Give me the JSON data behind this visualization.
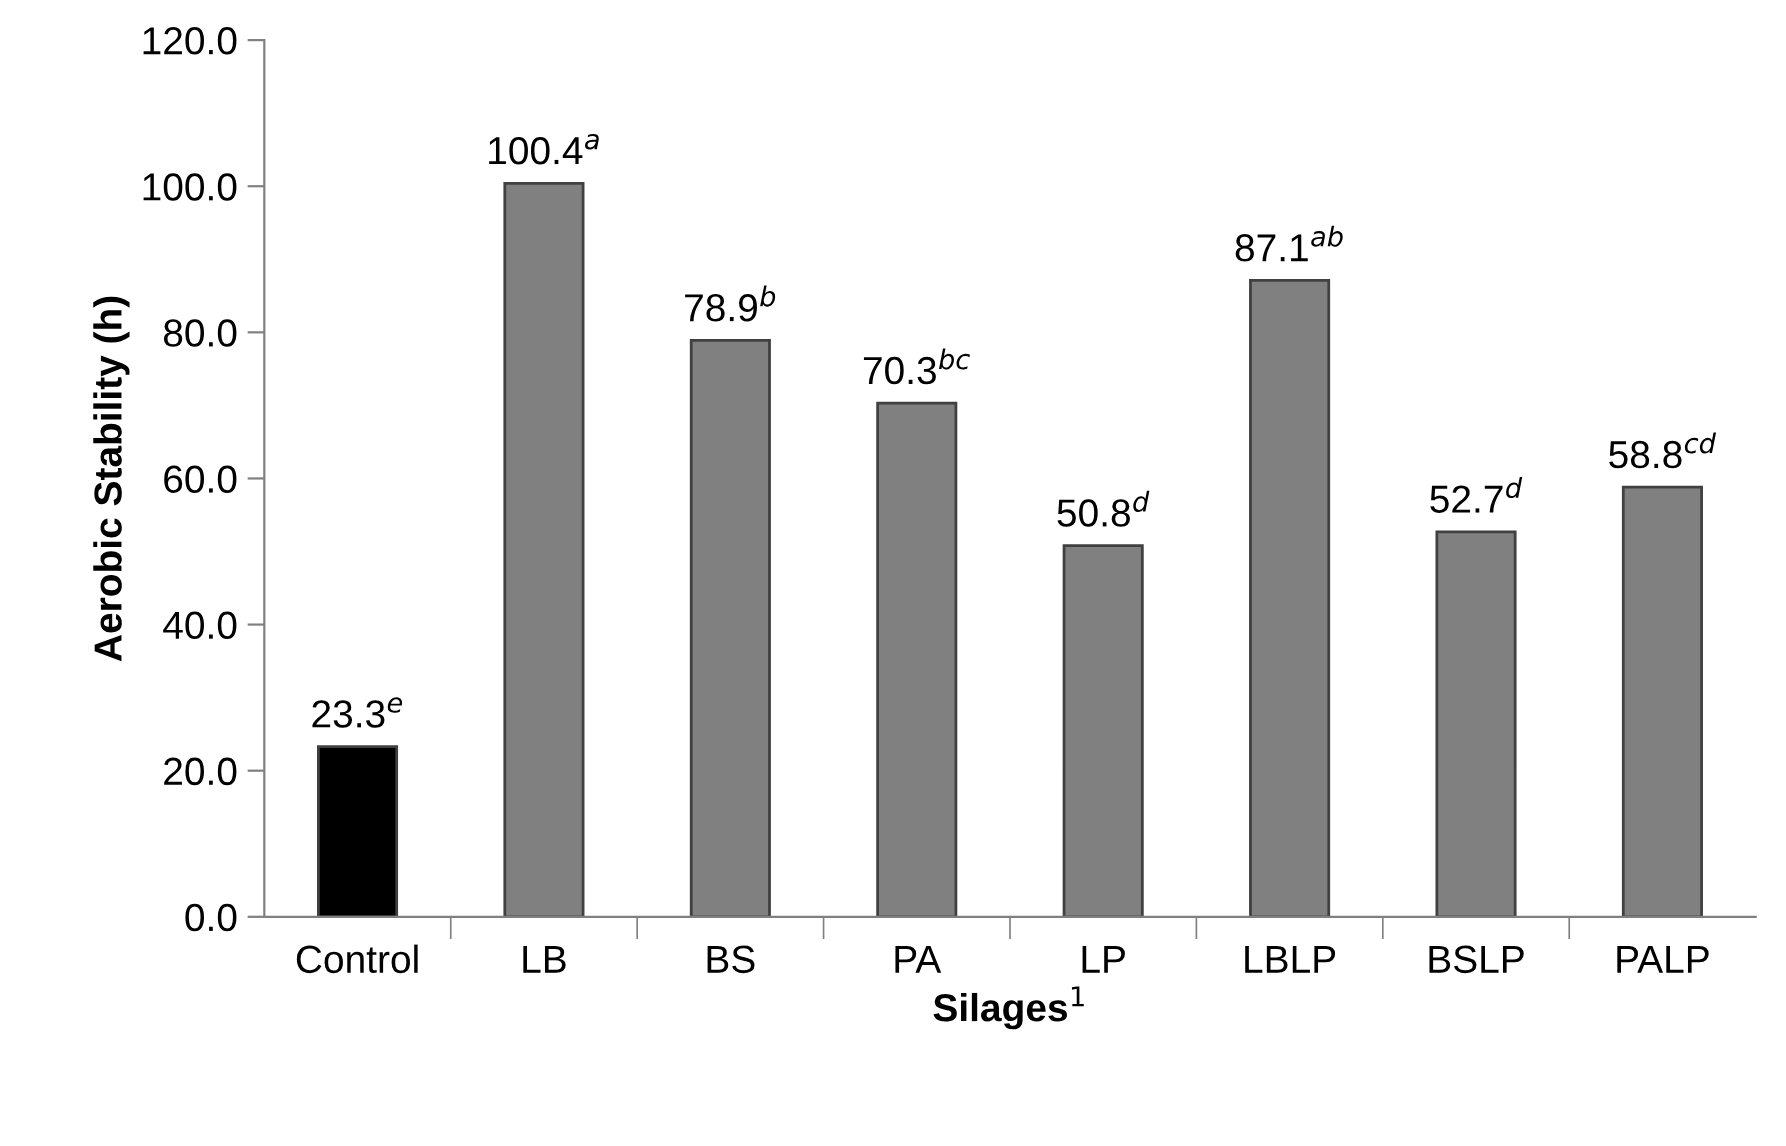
{
  "chart_data": {
    "type": "bar",
    "categories": [
      "Control",
      "LB",
      "BS",
      "PA",
      "LP",
      "LBLP",
      "BSLP",
      "PALP"
    ],
    "values": [
      23.3,
      100.4,
      78.9,
      70.3,
      50.8,
      87.1,
      52.7,
      58.8
    ],
    "colors": [
      "#000000",
      "#808080",
      "#808080",
      "#808080",
      "#808080",
      "#808080",
      "#808080",
      "#808080"
    ],
    "value_labels": [
      "23.3$^{e}$",
      "100.4$^{a}$",
      "78.9$^{b}$",
      "70.3$^{bc}$",
      "50.8$^{d}$",
      "87.1$^{ab}$",
      "52.7$^{d}$",
      "58.8$^{cd}$"
    ],
    "xlabel": "Silages$^{1}$",
    "ylabel": "Aerobic Stability (h)",
    "ylim": [
      0,
      120
    ],
    "yticks": [
      {
        "value": 0,
        "label": "0.0"
      },
      {
        "value": 20,
        "label": "20.0"
      },
      {
        "value": 40,
        "label": "40.0"
      },
      {
        "value": 60,
        "label": "60.0"
      },
      {
        "value": 80,
        "label": "80.0"
      },
      {
        "value": 100,
        "label": "100.0"
      },
      {
        "value": 120,
        "label": "120.0"
      }
    ],
    "grid": false,
    "legend": false
  }
}
